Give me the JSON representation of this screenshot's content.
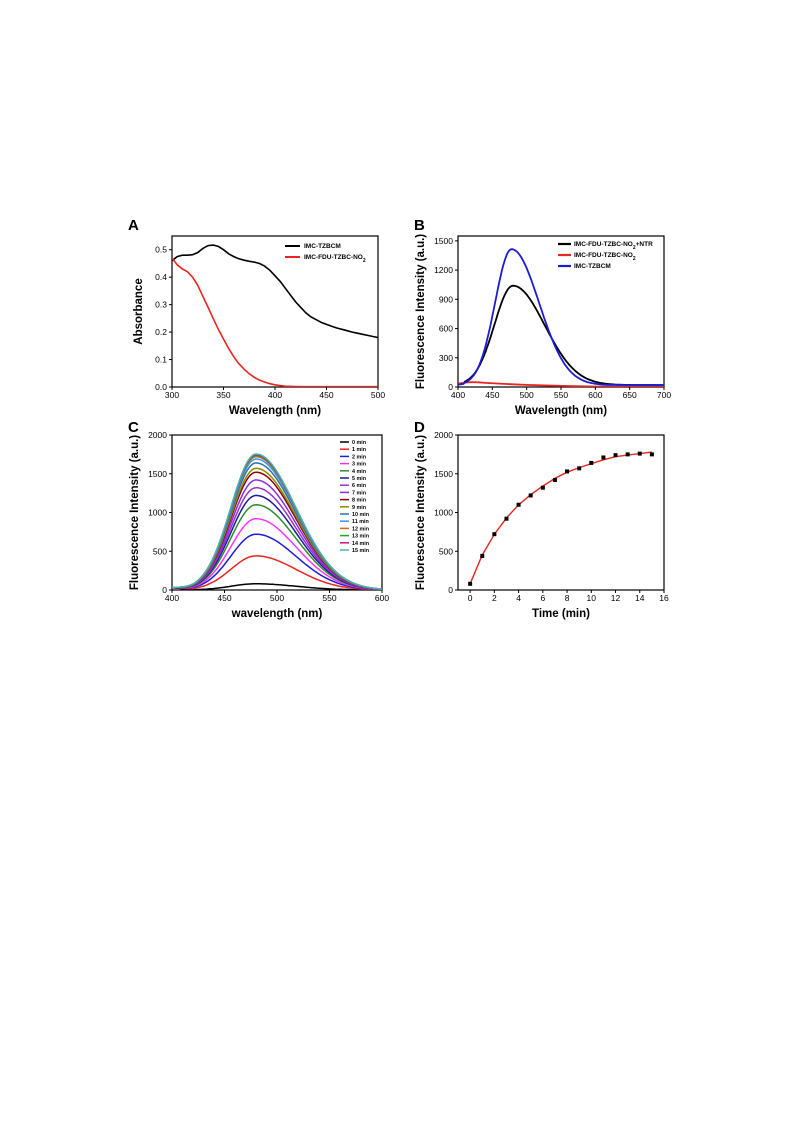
{
  "chart_data": [
    {
      "panel": "A",
      "type": "line",
      "xlabel": "Wavelength (nm)",
      "ylabel": "Absorbance",
      "xlim": [
        300,
        500
      ],
      "ylim": [
        0,
        0.55
      ],
      "xticks": [
        "300",
        "350",
        "400",
        "450",
        "500"
      ],
      "yticks": [
        "0.0",
        "0.1",
        "0.2",
        "0.3",
        "0.4",
        "0.5"
      ],
      "legend_position": "top-right",
      "series": [
        {
          "name": "IMC-TZBCM",
          "color": "#000000",
          "x": [
            300,
            305,
            310,
            315,
            320,
            325,
            330,
            335,
            340,
            345,
            350,
            355,
            360,
            365,
            370,
            375,
            380,
            385,
            390,
            395,
            400,
            405,
            410,
            415,
            420,
            425,
            430,
            435,
            440,
            445,
            450,
            455,
            460,
            465,
            470,
            475,
            480,
            485,
            490,
            495,
            500
          ],
          "y": [
            0.46,
            0.475,
            0.48,
            0.48,
            0.482,
            0.49,
            0.505,
            0.515,
            0.517,
            0.512,
            0.5,
            0.485,
            0.475,
            0.467,
            0.462,
            0.458,
            0.455,
            0.45,
            0.44,
            0.425,
            0.405,
            0.385,
            0.36,
            0.335,
            0.31,
            0.29,
            0.27,
            0.255,
            0.245,
            0.235,
            0.228,
            0.221,
            0.215,
            0.21,
            0.205,
            0.2,
            0.196,
            0.192,
            0.188,
            0.184,
            0.18
          ]
        },
        {
          "name_main": "IMC-FDU-TZBC-NO",
          "name_sub": "2",
          "color": "#e8251e",
          "x": [
            300,
            305,
            310,
            315,
            320,
            325,
            330,
            335,
            340,
            345,
            350,
            355,
            360,
            365,
            370,
            375,
            380,
            385,
            390,
            395,
            400,
            405,
            410,
            420,
            430,
            440,
            450,
            460,
            470,
            480,
            490,
            500
          ],
          "y": [
            0.47,
            0.445,
            0.43,
            0.42,
            0.4,
            0.37,
            0.33,
            0.29,
            0.25,
            0.21,
            0.175,
            0.14,
            0.11,
            0.085,
            0.065,
            0.048,
            0.035,
            0.025,
            0.018,
            0.012,
            0.008,
            0.005,
            0.003,
            0.002,
            0.001,
            0.001,
            0.001,
            0.001,
            0.001,
            0.001,
            0.001,
            0.001
          ]
        }
      ]
    },
    {
      "panel": "B",
      "type": "line",
      "xlabel": "Wavelength (nm)",
      "ylabel": "Fluorescence Intensity (a.u.)",
      "xlim": [
        400,
        700
      ],
      "ylim": [
        0,
        1550
      ],
      "xticks": [
        "400",
        "450",
        "500",
        "550",
        "600",
        "650",
        "700"
      ],
      "yticks": [
        "0",
        "300",
        "600",
        "900",
        "1200",
        "1500"
      ],
      "legend_position": "top-right",
      "series": [
        {
          "name_main": "IMC-FDU-TZBC-NO",
          "name_sub": "2",
          "name_tail": "+NTR",
          "color": "#000000",
          "peak_x": 480,
          "peak_y": 1040,
          "sigma_left": 27,
          "sigma_right": 46,
          "baseline": 20
        },
        {
          "name_main": "IMC-FDU-TZBC-NO",
          "name_sub": "2",
          "color": "#e8251e",
          "x": [
            400,
            410,
            420,
            430,
            440,
            460,
            480,
            500,
            520,
            540,
            560,
            580,
            600,
            650,
            700
          ],
          "y": [
            35,
            45,
            50,
            48,
            42,
            35,
            28,
            22,
            17,
            13,
            10,
            7,
            5,
            3,
            2
          ]
        },
        {
          "name": "IMC-TZBCM",
          "color": "#1c1cd8",
          "peak_x": 478,
          "peak_y": 1415,
          "sigma_left": 24,
          "sigma_right": 40,
          "baseline": 20
        }
      ]
    },
    {
      "panel": "C",
      "type": "line",
      "xlabel": "wavelength (nm)",
      "ylabel": "Fluorescence Intensity (a.u.)",
      "xlim": [
        400,
        600
      ],
      "ylim": [
        0,
        2000
      ],
      "xticks": [
        "400",
        "450",
        "500",
        "550",
        "600"
      ],
      "yticks": [
        "0",
        "500",
        "1000",
        "1500",
        "2000"
      ],
      "legend_position": "top-right",
      "peak_x": 480,
      "sigma_left": 24,
      "sigma_right": 38,
      "series": [
        {
          "name": "0 min",
          "color": "#000000",
          "peak": 80
        },
        {
          "name": "1 min",
          "color": "#e8251e",
          "peak": 440
        },
        {
          "name": "2 min",
          "color": "#1c1cd8",
          "peak": 720
        },
        {
          "name": "3 min",
          "color": "#ff33ff",
          "peak": 920
        },
        {
          "name": "4 min",
          "color": "#2e8b2e",
          "peak": 1100
        },
        {
          "name": "5 min",
          "color": "#1a1a99",
          "peak": 1220
        },
        {
          "name": "6 min",
          "color": "#9b30c8",
          "peak": 1320
        },
        {
          "name": "7 min",
          "color": "#8a2be2",
          "peak": 1420
        },
        {
          "name": "8 min",
          "color": "#8b0000",
          "peak": 1520
        },
        {
          "name": "9 min",
          "color": "#8b8b00",
          "peak": 1570
        },
        {
          "name": "10 min",
          "color": "#2f6fa8",
          "peak": 1640
        },
        {
          "name": "11 min",
          "color": "#3399ff",
          "peak": 1690
        },
        {
          "name": "12 min",
          "color": "#d2691e",
          "peak": 1720
        },
        {
          "name": "13 min",
          "color": "#1fa81f",
          "peak": 1735
        },
        {
          "name": "14 min",
          "color": "#c71585",
          "peak": 1745
        },
        {
          "name": "15 min",
          "color": "#48b4b4",
          "peak": 1755
        }
      ]
    },
    {
      "panel": "D",
      "type": "scatter",
      "xlabel": "Time (min)",
      "ylabel": "Fluorescence Intensity (a.u.)",
      "xlim": [
        -1,
        16
      ],
      "ylim": [
        0,
        2000
      ],
      "xticks": [
        "0",
        "2",
        "4",
        "6",
        "8",
        "10",
        "12",
        "14",
        "16"
      ],
      "yticks": [
        "0",
        "500",
        "1000",
        "1500",
        "2000"
      ],
      "fit_color": "#e8251e",
      "point_color": "#000000",
      "x": [
        0,
        1,
        2,
        3,
        4,
        5,
        6,
        7,
        8,
        9,
        10,
        11,
        12,
        13,
        14,
        15
      ],
      "y": [
        80,
        440,
        720,
        920,
        1100,
        1220,
        1320,
        1420,
        1530,
        1570,
        1640,
        1710,
        1740,
        1750,
        1760,
        1750
      ],
      "fit_x": [
        0,
        1,
        2,
        3,
        4,
        5,
        6,
        7,
        8,
        9,
        10,
        11,
        12,
        13,
        14,
        15
      ],
      "fit_y": [
        80,
        450,
        720,
        930,
        1100,
        1230,
        1340,
        1440,
        1520,
        1580,
        1630,
        1680,
        1720,
        1740,
        1760,
        1780
      ]
    }
  ]
}
